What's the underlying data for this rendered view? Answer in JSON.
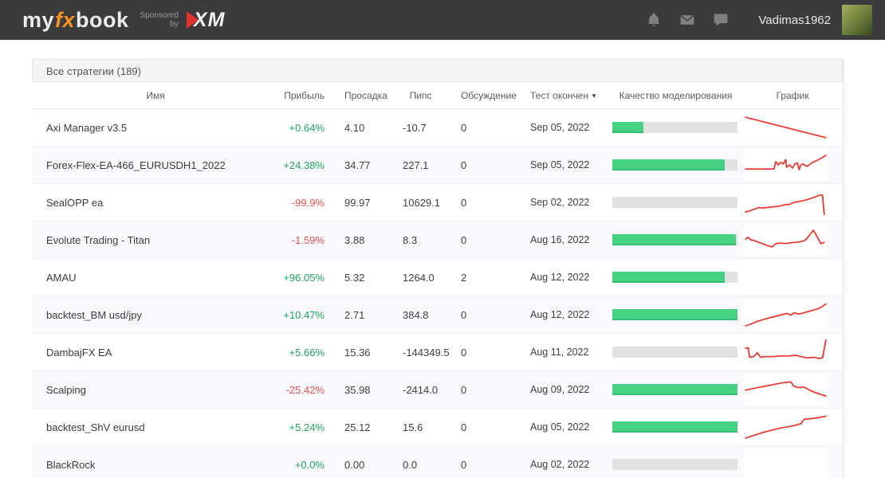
{
  "header": {
    "logo_my": "my",
    "logo_fx": "fx",
    "logo_book": "book",
    "sponsored_line1": "Sponsored",
    "sponsored_line2": "by",
    "xm_label": "XM",
    "username": "Vadimas1962",
    "icons": [
      "bell-icon",
      "mail-icon",
      "chat-icon"
    ]
  },
  "panel": {
    "title": "Все стратегии (189)"
  },
  "table": {
    "columns": [
      "Имя",
      "Прибыль",
      "Просадка",
      "Пипс",
      "Обсуждение",
      "Тест окончен",
      "Качество моделирования",
      "График"
    ],
    "sort_column": "Тест окончен",
    "sort_caret": "▼",
    "rows": [
      {
        "name": "Axi Manager v3.5",
        "profit": "+0.64%",
        "profit_positive": true,
        "drawdown": "4.10",
        "pips": "-10.7",
        "discussion": "0",
        "test_ended": "Sep 05, 2022",
        "quality_pct": 25,
        "spark": [
          [
            2,
            18
          ],
          [
            98,
            82
          ]
        ]
      },
      {
        "name": "Forex-Flex-EA-466_EURUSDH1_2022",
        "profit": "+24.38%",
        "profit_positive": true,
        "drawdown": "34.77",
        "pips": "227.1",
        "discussion": "0",
        "test_ended": "Sep 05, 2022",
        "quality_pct": 90,
        "spark": [
          [
            2,
            63
          ],
          [
            36,
            63
          ],
          [
            38,
            40
          ],
          [
            41,
            50
          ],
          [
            44,
            42
          ],
          [
            47,
            47
          ],
          [
            50,
            33
          ],
          [
            51,
            57
          ],
          [
            55,
            50
          ],
          [
            58,
            60
          ],
          [
            61,
            47
          ],
          [
            64,
            44
          ],
          [
            66,
            65
          ],
          [
            68,
            50
          ],
          [
            71,
            47
          ],
          [
            75,
            55
          ],
          [
            78,
            50
          ],
          [
            82,
            42
          ],
          [
            88,
            35
          ],
          [
            93,
            28
          ],
          [
            98,
            20
          ]
        ]
      },
      {
        "name": "SealOPP ea",
        "profit": "-99.9%",
        "profit_positive": false,
        "drawdown": "99.97",
        "pips": "10629.1",
        "discussion": "0",
        "test_ended": "Sep 02, 2022",
        "quality_pct": 0,
        "spark": [
          [
            2,
            80
          ],
          [
            8,
            76
          ],
          [
            14,
            70
          ],
          [
            18,
            66
          ],
          [
            22,
            68
          ],
          [
            28,
            66
          ],
          [
            35,
            64
          ],
          [
            42,
            62
          ],
          [
            48,
            58
          ],
          [
            55,
            56
          ],
          [
            60,
            50
          ],
          [
            68,
            46
          ],
          [
            75,
            42
          ],
          [
            82,
            36
          ],
          [
            88,
            30
          ],
          [
            92,
            26
          ],
          [
            94,
            28
          ],
          [
            96,
            88
          ]
        ]
      },
      {
        "name": "Evolute Trading - Titan",
        "profit": "-1.59%",
        "profit_positive": false,
        "drawdown": "3.88",
        "pips": "8.3",
        "discussion": "0",
        "test_ended": "Aug 16, 2022",
        "quality_pct": 99,
        "spark": [
          [
            2,
            48
          ],
          [
            5,
            42
          ],
          [
            8,
            50
          ],
          [
            12,
            52
          ],
          [
            18,
            58
          ],
          [
            24,
            64
          ],
          [
            30,
            70
          ],
          [
            34,
            72
          ],
          [
            38,
            62
          ],
          [
            44,
            60
          ],
          [
            50,
            62
          ],
          [
            56,
            59
          ],
          [
            62,
            58
          ],
          [
            68,
            56
          ],
          [
            74,
            50
          ],
          [
            80,
            30
          ],
          [
            83,
            20
          ],
          [
            87,
            38
          ],
          [
            92,
            62
          ],
          [
            96,
            58
          ]
        ]
      },
      {
        "name": "AMAU",
        "profit": "+96.05%",
        "profit_positive": true,
        "drawdown": "5.32",
        "pips": "1264.0",
        "discussion": "2",
        "test_ended": "Aug 12, 2022",
        "quality_pct": 90,
        "spark": []
      },
      {
        "name": "backtest_BM usd/jpy",
        "profit": "+10.47%",
        "profit_positive": true,
        "drawdown": "2.71",
        "pips": "384.8",
        "discussion": "0",
        "test_ended": "Aug 12, 2022",
        "quality_pct": 100,
        "spark": [
          [
            2,
            85
          ],
          [
            8,
            80
          ],
          [
            15,
            72
          ],
          [
            22,
            66
          ],
          [
            30,
            60
          ],
          [
            38,
            55
          ],
          [
            45,
            50
          ],
          [
            52,
            46
          ],
          [
            56,
            52
          ],
          [
            60,
            44
          ],
          [
            66,
            48
          ],
          [
            72,
            44
          ],
          [
            80,
            38
          ],
          [
            88,
            32
          ],
          [
            94,
            24
          ],
          [
            98,
            16
          ]
        ]
      },
      {
        "name": "DambajFX EA",
        "profit": "+5.66%",
        "profit_positive": true,
        "drawdown": "15.36",
        "pips": "-144349.5",
        "discussion": "0",
        "test_ended": "Aug 11, 2022",
        "quality_pct": 0,
        "spark": [
          [
            2,
            38
          ],
          [
            5,
            36
          ],
          [
            7,
            66
          ],
          [
            12,
            64
          ],
          [
            16,
            52
          ],
          [
            20,
            66
          ],
          [
            26,
            64
          ],
          [
            34,
            64
          ],
          [
            44,
            62
          ],
          [
            54,
            62
          ],
          [
            62,
            60
          ],
          [
            68,
            64
          ],
          [
            76,
            68
          ],
          [
            84,
            66
          ],
          [
            90,
            70
          ],
          [
            94,
            68
          ],
          [
            98,
            12
          ]
        ]
      },
      {
        "name": "Scalping",
        "profit": "-25.42%",
        "profit_positive": false,
        "drawdown": "35.98",
        "pips": "-2414.0",
        "discussion": "0",
        "test_ended": "Aug 09, 2022",
        "quality_pct": 100,
        "spark": [
          [
            2,
            52
          ],
          [
            12,
            46
          ],
          [
            24,
            40
          ],
          [
            36,
            34
          ],
          [
            48,
            28
          ],
          [
            56,
            26
          ],
          [
            60,
            40
          ],
          [
            66,
            44
          ],
          [
            72,
            42
          ],
          [
            80,
            54
          ],
          [
            90,
            64
          ],
          [
            98,
            70
          ]
        ]
      },
      {
        "name": "backtest_ShV eurusd",
        "profit": "+5.24%",
        "profit_positive": true,
        "drawdown": "25.12",
        "pips": "15.6",
        "discussion": "0",
        "test_ended": "Aug 05, 2022",
        "quality_pct": 100,
        "spark": [
          [
            2,
            85
          ],
          [
            12,
            76
          ],
          [
            24,
            66
          ],
          [
            36,
            58
          ],
          [
            46,
            52
          ],
          [
            56,
            48
          ],
          [
            62,
            44
          ],
          [
            68,
            40
          ],
          [
            72,
            26
          ],
          [
            80,
            24
          ],
          [
            90,
            20
          ],
          [
            98,
            16
          ]
        ]
      },
      {
        "name": "BlackRock",
        "profit": "+0.0%",
        "profit_positive": true,
        "drawdown": "0.00",
        "pips": "0.0",
        "discussion": "0",
        "test_ended": "Aug 02, 2022",
        "quality_pct": 0,
        "spark": []
      }
    ]
  },
  "colors": {
    "green_text": "#1ea35a",
    "red_text": "#ef4d4d",
    "bar_fill": "#47d283",
    "spark_line": "#ee352c",
    "topbar_bg": "#3b3b3b",
    "logo_orange": "#f7941e"
  }
}
